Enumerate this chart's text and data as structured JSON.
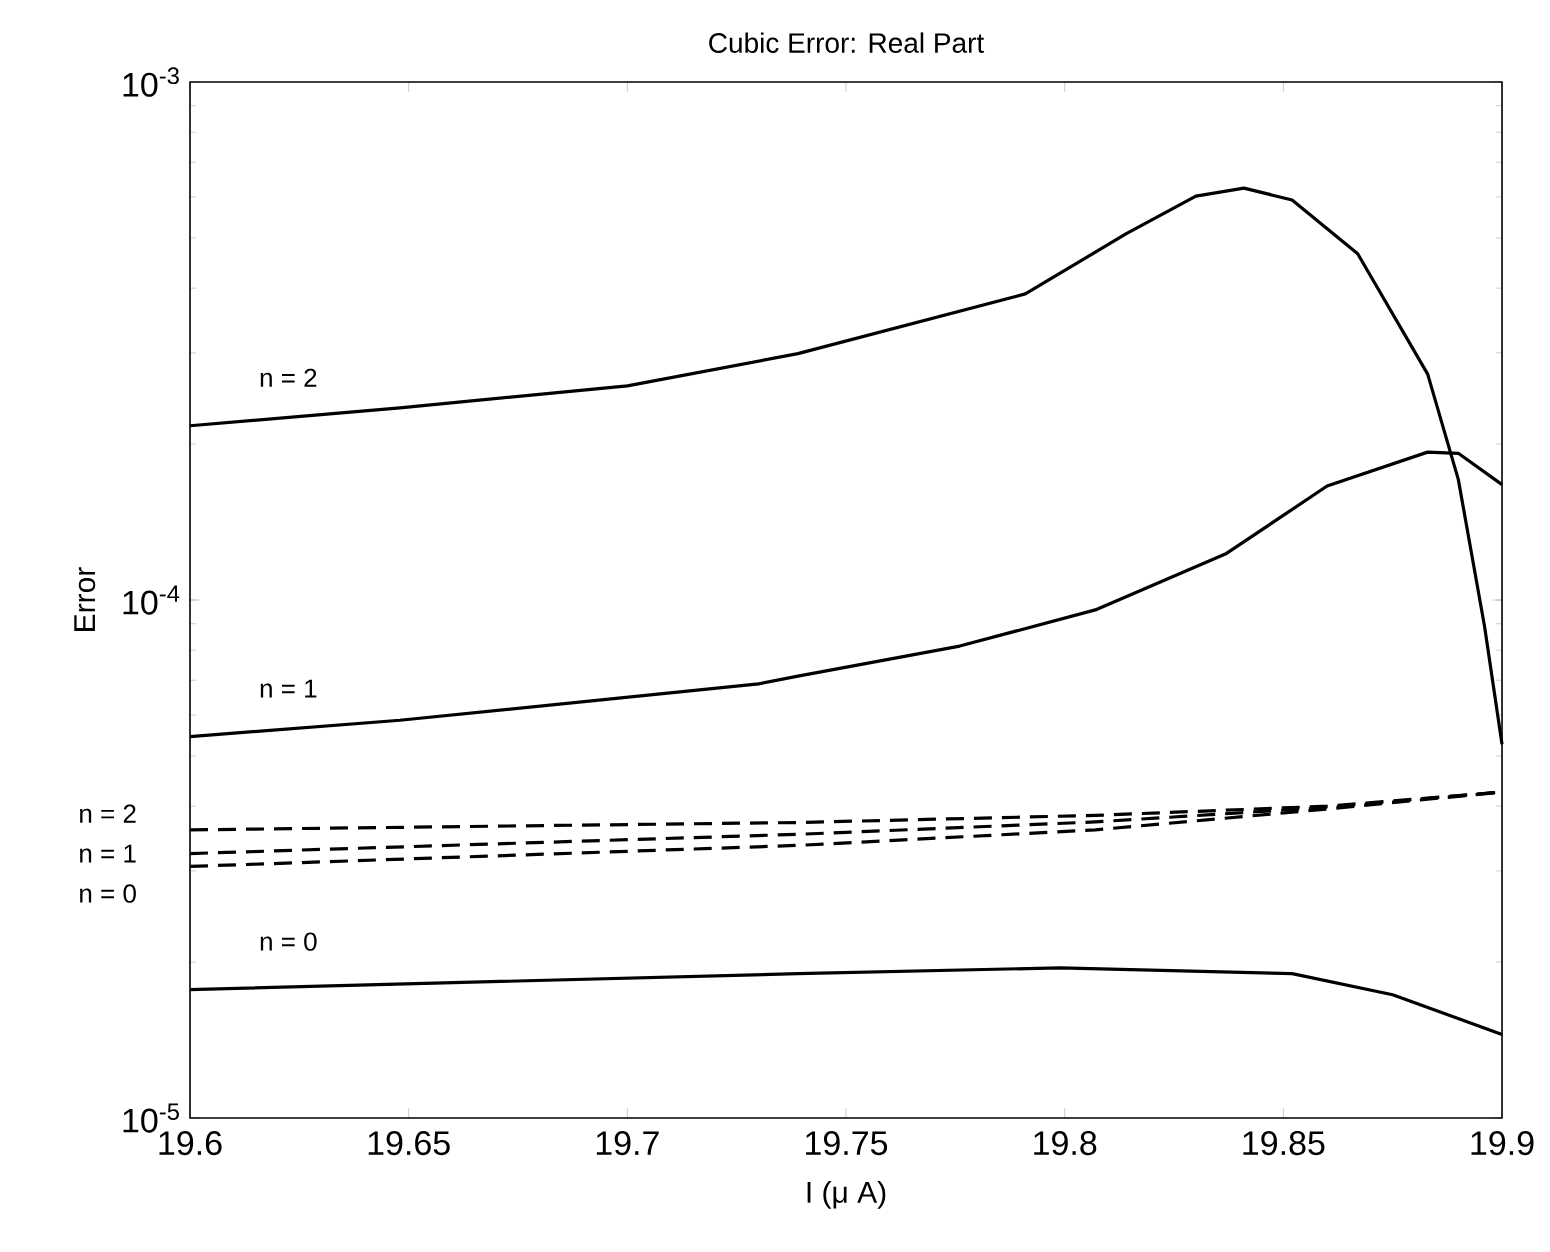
{
  "chart_data": {
    "type": "line",
    "title": "Cubic Error: Real Part",
    "xlabel": "I (μ A)",
    "ylabel": "Error",
    "log": "y",
    "xlim": [
      19.6,
      19.9
    ],
    "ylim": [
      1e-05,
      0.001
    ],
    "xticks": [
      19.6,
      19.65,
      19.7,
      19.75,
      19.8,
      19.85,
      19.9
    ],
    "yticks": [
      {
        "value": 1e-05,
        "label": "10$^{-5}$"
      },
      {
        "value": 0.0001,
        "label": "10$^{-4}$"
      },
      {
        "value": 0.001,
        "label": "10$^{-3}$"
      }
    ],
    "series": [
      {
        "name": "n = 2",
        "color": "#000000",
        "line_style": "solid",
        "x": [
          19.6,
          19.648,
          19.7,
          19.739,
          19.791,
          19.814,
          19.83,
          19.841,
          19.852,
          19.867,
          19.883,
          19.89,
          19.896,
          19.9
        ],
        "values": [
          0.000217,
          0.000235,
          0.000259,
          0.000299,
          0.00039,
          0.000509,
          0.000602,
          0.000624,
          0.000592,
          0.000466,
          0.000273,
          0.000171,
          8.9e-05,
          5.27e-05
        ]
      },
      {
        "name": "n = 1",
        "color": "#000000",
        "line_style": "solid",
        "x": [
          19.6,
          19.648,
          19.73,
          19.739,
          19.776,
          19.807,
          19.837,
          19.86,
          19.883,
          19.89,
          19.9
        ],
        "values": [
          5.45e-05,
          5.86e-05,
          6.89e-05,
          7.13e-05,
          8.15e-05,
          9.57e-05,
          0.000123,
          0.000166,
          0.000193,
          0.000192,
          0.000167
        ]
      },
      {
        "name": "n = 0",
        "color": "#000000",
        "line_style": "solid",
        "x": [
          19.6,
          19.739,
          19.799,
          19.852,
          19.875,
          19.9
        ],
        "values": [
          1.77e-05,
          1.9e-05,
          1.95e-05,
          1.9e-05,
          1.73e-05,
          1.45e-05
        ]
      },
      {
        "name": "n = 2",
        "color": "#000000",
        "line_style": "dashed",
        "x": [
          19.6,
          19.739,
          19.807,
          19.86,
          19.9
        ],
        "values": [
          3.6e-05,
          3.72e-05,
          3.84e-05,
          4e-05,
          4.26e-05
        ]
      },
      {
        "name": "n = 1",
        "color": "#000000",
        "line_style": "dashed",
        "x": [
          19.6,
          19.739,
          19.807,
          19.86,
          19.9
        ],
        "values": [
          3.24e-05,
          3.53e-05,
          3.73e-05,
          3.98e-05,
          4.26e-05
        ]
      },
      {
        "name": "n = 0",
        "color": "#000000",
        "line_style": "dashed",
        "x": [
          19.6,
          19.739,
          19.807,
          19.86,
          19.9
        ],
        "values": [
          3.06e-05,
          3.36e-05,
          3.6e-05,
          3.95e-05,
          4.26e-05
        ]
      }
    ]
  }
}
